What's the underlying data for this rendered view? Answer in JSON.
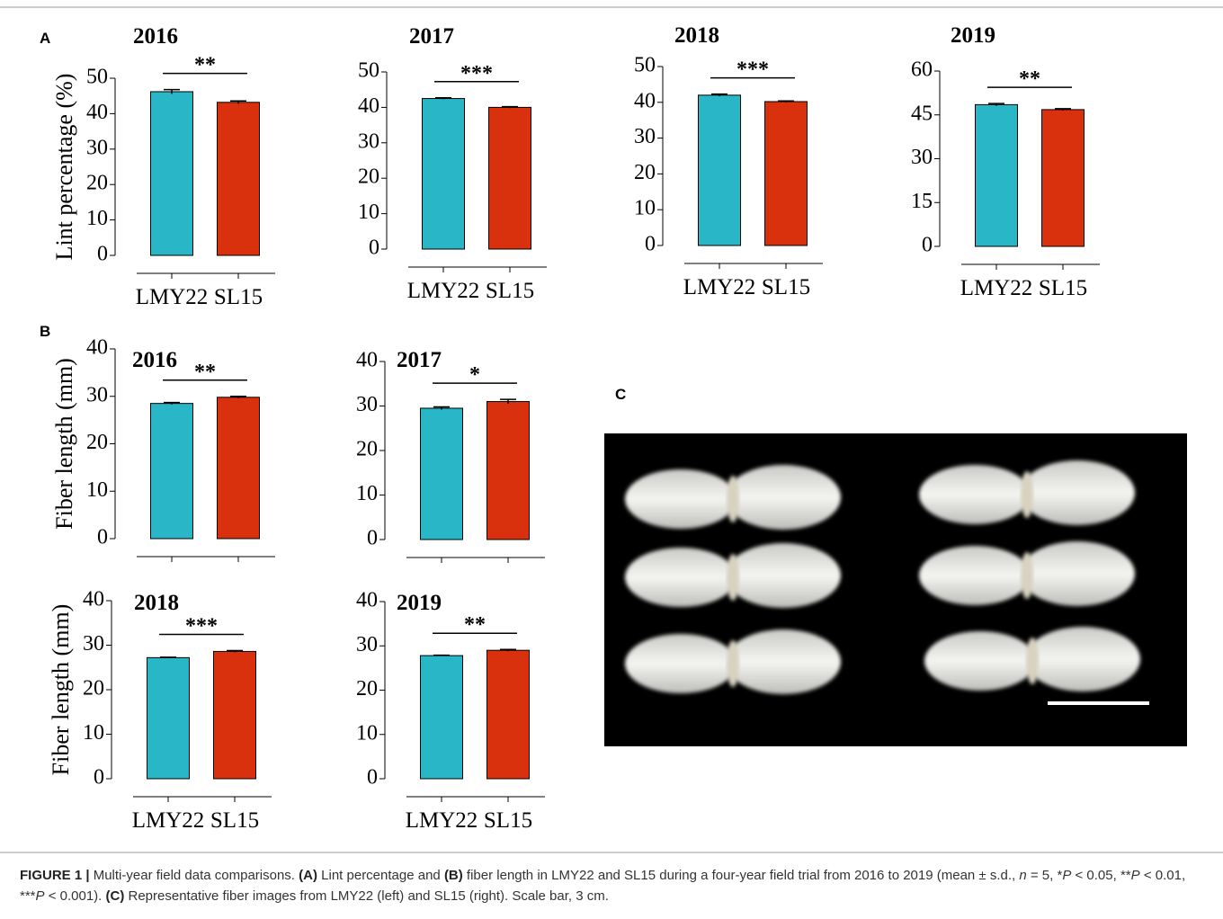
{
  "panel_labels": [
    "A",
    "B",
    "C"
  ],
  "chart_data": [
    {
      "type": "bar",
      "title": "2016",
      "ylabel": "Lint percentage (%)",
      "categories": [
        "LMY22",
        "SL15"
      ],
      "values": [
        46.2,
        43.2
      ],
      "errors": [
        0.6,
        0.4
      ],
      "colors": [
        "#29b6c6",
        "#d9300e"
      ],
      "significance": "**",
      "ylim": [
        0,
        50
      ],
      "yticks": [
        0,
        10,
        20,
        30,
        40,
        50
      ]
    },
    {
      "type": "bar",
      "title": "2017",
      "categories": [
        "LMY22",
        "SL15"
      ],
      "values": [
        42.5,
        40.0
      ],
      "errors": [
        0.2,
        0.2
      ],
      "colors": [
        "#29b6c6",
        "#d9300e"
      ],
      "significance": "***",
      "ylim": [
        0,
        50
      ],
      "yticks": [
        0,
        10,
        20,
        30,
        40,
        50
      ]
    },
    {
      "type": "bar",
      "title": "2018",
      "categories": [
        "LMY22",
        "SL15"
      ],
      "values": [
        42.0,
        40.2
      ],
      "errors": [
        0.3,
        0.2
      ],
      "colors": [
        "#29b6c6",
        "#d9300e"
      ],
      "significance": "***",
      "ylim": [
        0,
        50
      ],
      "yticks": [
        0,
        10,
        20,
        30,
        40,
        50
      ]
    },
    {
      "type": "bar",
      "title": "2019",
      "categories": [
        "LMY22",
        "SL15"
      ],
      "values": [
        48.5,
        46.8
      ],
      "errors": [
        0.4,
        0.3
      ],
      "colors": [
        "#29b6c6",
        "#d9300e"
      ],
      "significance": "**",
      "ylim": [
        0,
        60
      ],
      "yticks": [
        0,
        15,
        30,
        45,
        60
      ]
    },
    {
      "type": "bar",
      "title": "2016",
      "ylabel": "Fiber length (mm)",
      "categories": [
        null,
        null
      ],
      "values": [
        28.5,
        29.8
      ],
      "errors": [
        0.2,
        0.2
      ],
      "colors": [
        "#29b6c6",
        "#d9300e"
      ],
      "significance": "**",
      "ylim": [
        0,
        40
      ],
      "yticks": [
        0,
        10,
        20,
        30,
        40
      ]
    },
    {
      "type": "bar",
      "title": "2017",
      "categories": [
        null,
        null
      ],
      "values": [
        29.5,
        31.0
      ],
      "errors": [
        0.3,
        0.5
      ],
      "colors": [
        "#29b6c6",
        "#d9300e"
      ],
      "significance": "*",
      "ylim": [
        0,
        40
      ],
      "yticks": [
        0,
        10,
        20,
        30,
        40
      ]
    },
    {
      "type": "bar",
      "title": "2018",
      "ylabel": "Fiber length (mm)",
      "categories": [
        "LMY22",
        "SL15"
      ],
      "values": [
        27.2,
        28.6
      ],
      "errors": [
        0.1,
        0.2
      ],
      "colors": [
        "#29b6c6",
        "#d9300e"
      ],
      "significance": "***",
      "ylim": [
        0,
        40
      ],
      "yticks": [
        0,
        10,
        20,
        30,
        40
      ]
    },
    {
      "type": "bar",
      "title": "2019",
      "categories": [
        "LMY22",
        "SL15"
      ],
      "values": [
        27.8,
        29.0
      ],
      "errors": [
        0.1,
        0.2
      ],
      "colors": [
        "#29b6c6",
        "#d9300e"
      ],
      "significance": "**",
      "ylim": [
        0,
        40
      ],
      "yticks": [
        0,
        10,
        20,
        30,
        40
      ]
    }
  ],
  "caption": [
    "FIGURE 1 |",
    " Multi-year field data comparisons. ",
    "(A)",
    " Lint percentage and ",
    "(B)",
    " fiber length in LMY22 and SL15 during a four-year field trial from 2016 to 2019 (mean ± s.d., ",
    "n",
    " = 5, *",
    "P",
    " < 0.05, **",
    "P",
    " < 0.01, ***",
    "P",
    " < 0.001). ",
    "(C)",
    " Representative fiber images from LMY22 (left) and SL15 (right). Scale bar, 3 cm."
  ]
}
